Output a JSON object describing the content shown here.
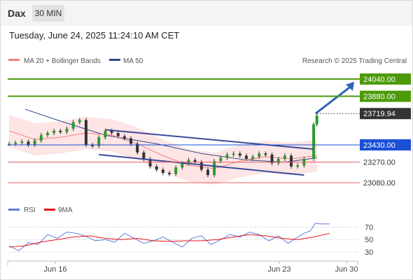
{
  "header": {
    "ticker": "Dax",
    "timeframe_label": "30 MIN",
    "datetime": "Tuesday, June 24, 2025 11:24:10 AM CET"
  },
  "legend": {
    "ma20_label": "MA 20 + Bollinger Bands",
    "ma50_label": "MA 50",
    "copyright": "Research © 2025 Trading Central",
    "rsi_label": "RSI",
    "rsi_ma_label": "9MA"
  },
  "colors": {
    "green_level": "#4c9a0a",
    "blue_level": "#1a4fd6",
    "red_level": "#e85c5c",
    "price_tag": "#333333",
    "band_fill": "#fde0e0",
    "ma20": "#f08080",
    "ma50": "#2b4a8a",
    "channel": "#3b4c9a",
    "arrow": "#2f63b8",
    "rsi": "#5b7fd8",
    "rsi_ma": "#e8121e",
    "candle": "#2d9a2d"
  },
  "chart_data": [
    {
      "type": "candlestick",
      "title": "Dax",
      "timeframe": "30 MIN",
      "ylim": [
        22950,
        24130
      ],
      "xlim": [
        "2025-06-13",
        "2025-06-30"
      ],
      "x_ticks": [
        "Jun 16",
        "Jun 23",
        "Jun 30"
      ],
      "last_price": 23719.94,
      "levels": {
        "resistance": [
          24040.0,
          23880.0
        ],
        "pivot": 23430.0,
        "support": [
          23270.0,
          23080.0
        ]
      },
      "channel": {
        "upper": [
          [
            0.3,
            23570
          ],
          [
            0.95,
            23390
          ]
        ],
        "lower": [
          [
            0.28,
            23340
          ],
          [
            0.92,
            23150
          ]
        ]
      },
      "target_arrow": {
        "from": [
          0.956,
          23719.94
        ],
        "to": [
          1.0,
          24040.0
        ]
      },
      "series": [
        {
          "name": "price",
          "x": [
            0.0,
            0.02,
            0.04,
            0.06,
            0.08,
            0.1,
            0.12,
            0.14,
            0.16,
            0.18,
            0.2,
            0.22,
            0.24,
            0.26,
            0.28,
            0.3,
            0.32,
            0.34,
            0.36,
            0.38,
            0.4,
            0.42,
            0.44,
            0.46,
            0.48,
            0.5,
            0.52,
            0.54,
            0.56,
            0.58,
            0.6,
            0.62,
            0.64,
            0.66,
            0.68,
            0.7,
            0.72,
            0.74,
            0.76,
            0.78,
            0.8,
            0.82,
            0.84,
            0.86,
            0.88,
            0.9,
            0.92,
            0.95,
            0.96
          ],
          "values": [
            23440,
            23450,
            23460,
            23430,
            23470,
            23520,
            23540,
            23560,
            23550,
            23580,
            23640,
            23660,
            23430,
            23420,
            23500,
            23560,
            23540,
            23510,
            23490,
            23440,
            23360,
            23300,
            23230,
            23200,
            23170,
            23160,
            23220,
            23260,
            23290,
            23270,
            23200,
            23150,
            23280,
            23310,
            23340,
            23350,
            23330,
            23300,
            23320,
            23350,
            23340,
            23260,
            23300,
            23330,
            23230,
            23240,
            23300,
            23620,
            23700
          ]
        },
        {
          "name": "MA 20",
          "x": [
            0.0,
            0.08,
            0.16,
            0.24,
            0.32,
            0.4,
            0.48,
            0.56,
            0.64,
            0.72,
            0.8,
            0.88,
            0.96
          ],
          "values": [
            23560,
            23480,
            23500,
            23540,
            23520,
            23440,
            23330,
            23240,
            23210,
            23280,
            23320,
            23300,
            23330
          ]
        },
        {
          "name": "MA 50",
          "x": [
            0.05,
            0.16,
            0.3,
            0.46,
            0.6,
            0.74,
            0.86,
            0.96
          ],
          "values": [
            23760,
            23650,
            23520,
            23440,
            23350,
            23290,
            23270,
            23310
          ]
        }
      ]
    },
    {
      "type": "line",
      "title": "RSI",
      "ylim": [
        20,
        85
      ],
      "y_ticks": [
        70,
        50,
        30
      ],
      "series": [
        {
          "name": "RSI",
          "x": [
            0.0,
            0.03,
            0.06,
            0.09,
            0.12,
            0.15,
            0.18,
            0.21,
            0.24,
            0.27,
            0.3,
            0.33,
            0.36,
            0.39,
            0.42,
            0.45,
            0.48,
            0.51,
            0.54,
            0.57,
            0.6,
            0.63,
            0.66,
            0.69,
            0.72,
            0.75,
            0.78,
            0.81,
            0.84,
            0.87,
            0.9,
            0.92,
            0.94,
            0.955,
            0.97,
            1.0
          ],
          "values": [
            40,
            32,
            45,
            42,
            58,
            52,
            62,
            60,
            55,
            48,
            50,
            46,
            60,
            52,
            44,
            48,
            54,
            46,
            38,
            52,
            56,
            42,
            50,
            58,
            54,
            62,
            58,
            48,
            56,
            44,
            54,
            60,
            64,
            76,
            75,
            75
          ]
        },
        {
          "name": "9MA",
          "x": [
            0.0,
            0.05,
            0.1,
            0.15,
            0.2,
            0.25,
            0.3,
            0.35,
            0.4,
            0.45,
            0.5,
            0.55,
            0.6,
            0.65,
            0.7,
            0.75,
            0.8,
            0.85,
            0.9,
            0.95,
            1.0
          ],
          "values": [
            38,
            40,
            46,
            50,
            54,
            56,
            52,
            50,
            52,
            48,
            47,
            48,
            48,
            50,
            54,
            58,
            56,
            52,
            50,
            54,
            60
          ]
        }
      ]
    }
  ]
}
